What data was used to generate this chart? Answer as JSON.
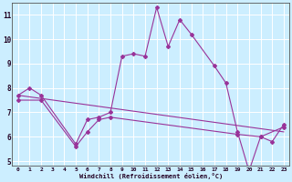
{
  "bg_color": "#cceeff",
  "line_color": "#993399",
  "grid_color": "#ffffff",
  "xlabel": "Windchill (Refroidissement éolien,°C)",
  "xlim": [
    -0.5,
    23.5
  ],
  "ylim": [
    4.8,
    11.5
  ],
  "yticks": [
    5,
    6,
    7,
    8,
    9,
    10,
    11
  ],
  "xticks": [
    0,
    1,
    2,
    3,
    4,
    5,
    6,
    7,
    8,
    9,
    10,
    11,
    12,
    13,
    14,
    15,
    16,
    17,
    18,
    19,
    20,
    21,
    22,
    23
  ],
  "series_top": {
    "x": [
      0,
      1,
      2,
      5,
      6,
      7,
      8,
      9,
      10,
      11,
      12,
      13,
      14,
      15,
      17,
      18,
      19,
      20,
      21,
      22,
      23
    ],
    "y": [
      7.7,
      8.0,
      7.7,
      5.7,
      6.7,
      6.8,
      7.0,
      9.3,
      9.4,
      9.3,
      11.3,
      9.7,
      10.8,
      10.2,
      8.9,
      8.2,
      6.2,
      4.6,
      6.0,
      5.8,
      6.5
    ]
  },
  "series_bottom": {
    "x": [
      0,
      2,
      5,
      6,
      7,
      8,
      19,
      21,
      23
    ],
    "y": [
      7.5,
      7.5,
      5.6,
      6.2,
      6.7,
      6.8,
      6.1,
      6.0,
      6.4
    ]
  },
  "series_trend": {
    "x": [
      0,
      23
    ],
    "y": [
      7.7,
      6.2
    ]
  }
}
